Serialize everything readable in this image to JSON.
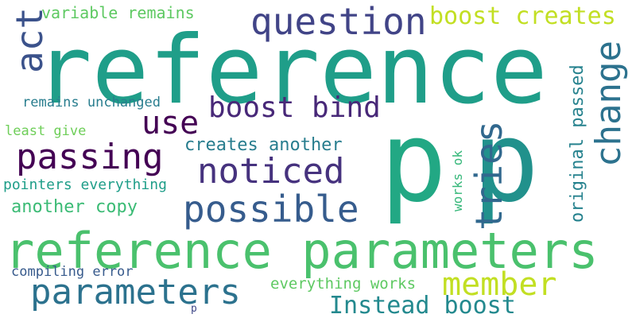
{
  "words": [
    {
      "text": "reference",
      "color": "#1f9e89",
      "vertical": false
    },
    {
      "text": "p",
      "color": "#22a884",
      "vertical": false
    },
    {
      "text": "p",
      "color": "#21918c",
      "vertical": false
    },
    {
      "text": "reference parameters",
      "color": "#4ac16d",
      "vertical": false
    },
    {
      "text": "question",
      "color": "#414487",
      "vertical": false
    },
    {
      "text": "boost creates",
      "color": "#c2df23",
      "vertical": false
    },
    {
      "text": "variable remains",
      "color": "#5ec962",
      "vertical": false
    },
    {
      "text": "act",
      "color": "#3b528b",
      "vertical": true
    },
    {
      "text": "boost bind",
      "color": "#482878",
      "vertical": false
    },
    {
      "text": "use",
      "color": "#440154",
      "vertical": false
    },
    {
      "text": "passing",
      "color": "#440154",
      "vertical": false
    },
    {
      "text": "noticed",
      "color": "#46327e",
      "vertical": false
    },
    {
      "text": "possible",
      "color": "#365c8d",
      "vertical": false
    },
    {
      "text": "tries",
      "color": "#31688e",
      "vertical": true
    },
    {
      "text": "change",
      "color": "#2c728e",
      "vertical": true
    },
    {
      "text": "original passed",
      "color": "#26828e",
      "vertical": true
    },
    {
      "text": "works ok",
      "color": "#35b779",
      "vertical": true
    },
    {
      "text": "remains unchanged",
      "color": "#287d8e",
      "vertical": false
    },
    {
      "text": "least give",
      "color": "#6ece58",
      "vertical": false
    },
    {
      "text": "creates another",
      "color": "#287d8e",
      "vertical": false
    },
    {
      "text": "pointers everything",
      "color": "#1f9e89",
      "vertical": false
    },
    {
      "text": "another copy",
      "color": "#3bbb75",
      "vertical": false
    },
    {
      "text": "parameters",
      "color": "#2c728e",
      "vertical": false
    },
    {
      "text": "member",
      "color": "#c2df23",
      "vertical": false
    },
    {
      "text": "compiling error",
      "color": "#375a8c",
      "vertical": false
    },
    {
      "text": "everything works",
      "color": "#5ec962",
      "vertical": false
    },
    {
      "text": "Instead boost",
      "color": "#23898e",
      "vertical": false
    },
    {
      "text": "p",
      "color": "#3f4788",
      "vertical": false
    }
  ]
}
